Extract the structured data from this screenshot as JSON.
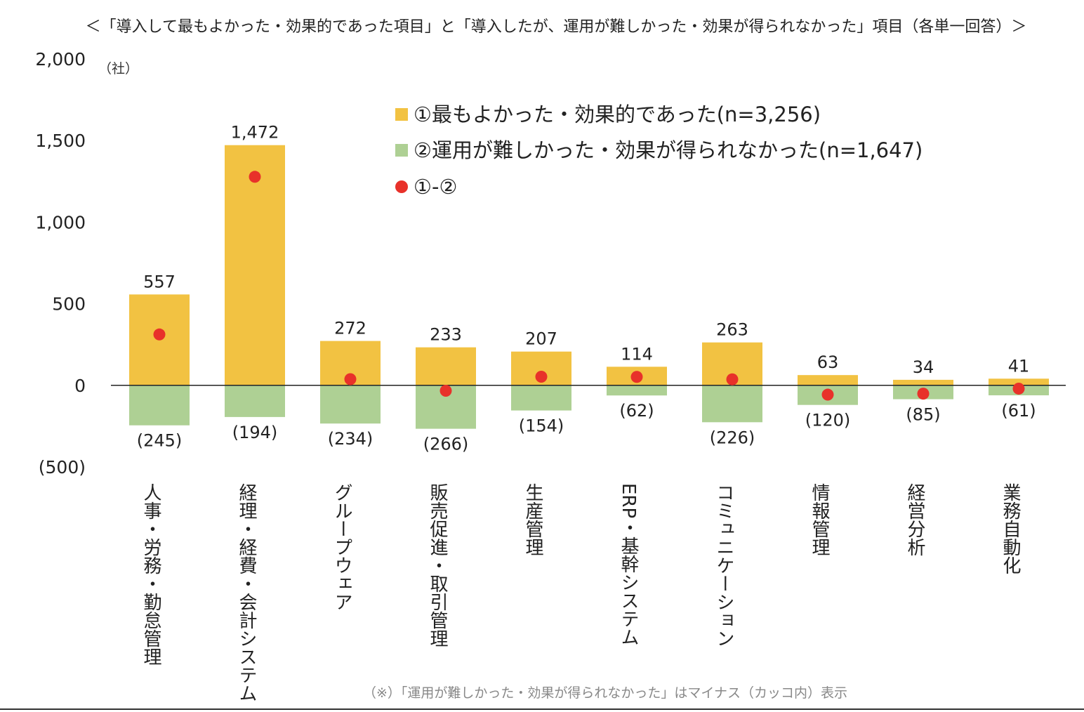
{
  "chart_data": {
    "type": "bar",
    "title": "＜「導入して最もよかった・効果的であった項目」と「導入したが、運用が難しかった・効果が得られなかった」項目（各単一回答）＞",
    "unit_label": "（社）",
    "footnote": "（※）「運用が難しかった・効果が得られなかった」はマイナス（カッコ内）表示",
    "ylim": [
      -500,
      2000
    ],
    "y_ticks": [
      2000,
      1500,
      1000,
      500,
      0,
      -500
    ],
    "y_tick_labels": [
      "2,000",
      "1,500",
      "1,000",
      "500",
      "0",
      "(500)"
    ],
    "grid": false,
    "legend_position": "top-right",
    "categories": [
      "人事・労務・勤怠管理",
      "経理・経費・会計システム",
      "グループウェア",
      "販売促進・取引管理",
      "生産管理",
      "ERP・基幹システム",
      "コミュニケーション",
      "情報管理",
      "経営分析",
      "業務自動化"
    ],
    "series": [
      {
        "name": "①最もよかった・効果的であった(n=3,256)",
        "color": "#F2C242",
        "values": [
          557,
          1472,
          272,
          233,
          207,
          114,
          263,
          63,
          34,
          41
        ],
        "labels": [
          "557",
          "1,472",
          "272",
          "233",
          "207",
          "114",
          "263",
          "63",
          "34",
          "41"
        ]
      },
      {
        "name": "②運用が難しかった・効果が得られなかった(n=1,647)",
        "color": "#AED094",
        "values": [
          -245,
          -194,
          -234,
          -266,
          -154,
          -62,
          -226,
          -120,
          -85,
          -61
        ],
        "labels": [
          "(245)",
          "(194)",
          "(234)",
          "(266)",
          "(154)",
          "(62)",
          "(226)",
          "(120)",
          "(85)",
          "(61)"
        ]
      },
      {
        "name": "①-②",
        "color": "#E8312A",
        "values": [
          312,
          1278,
          38,
          -33,
          53,
          52,
          37,
          -57,
          -51,
          -20
        ]
      }
    ]
  }
}
